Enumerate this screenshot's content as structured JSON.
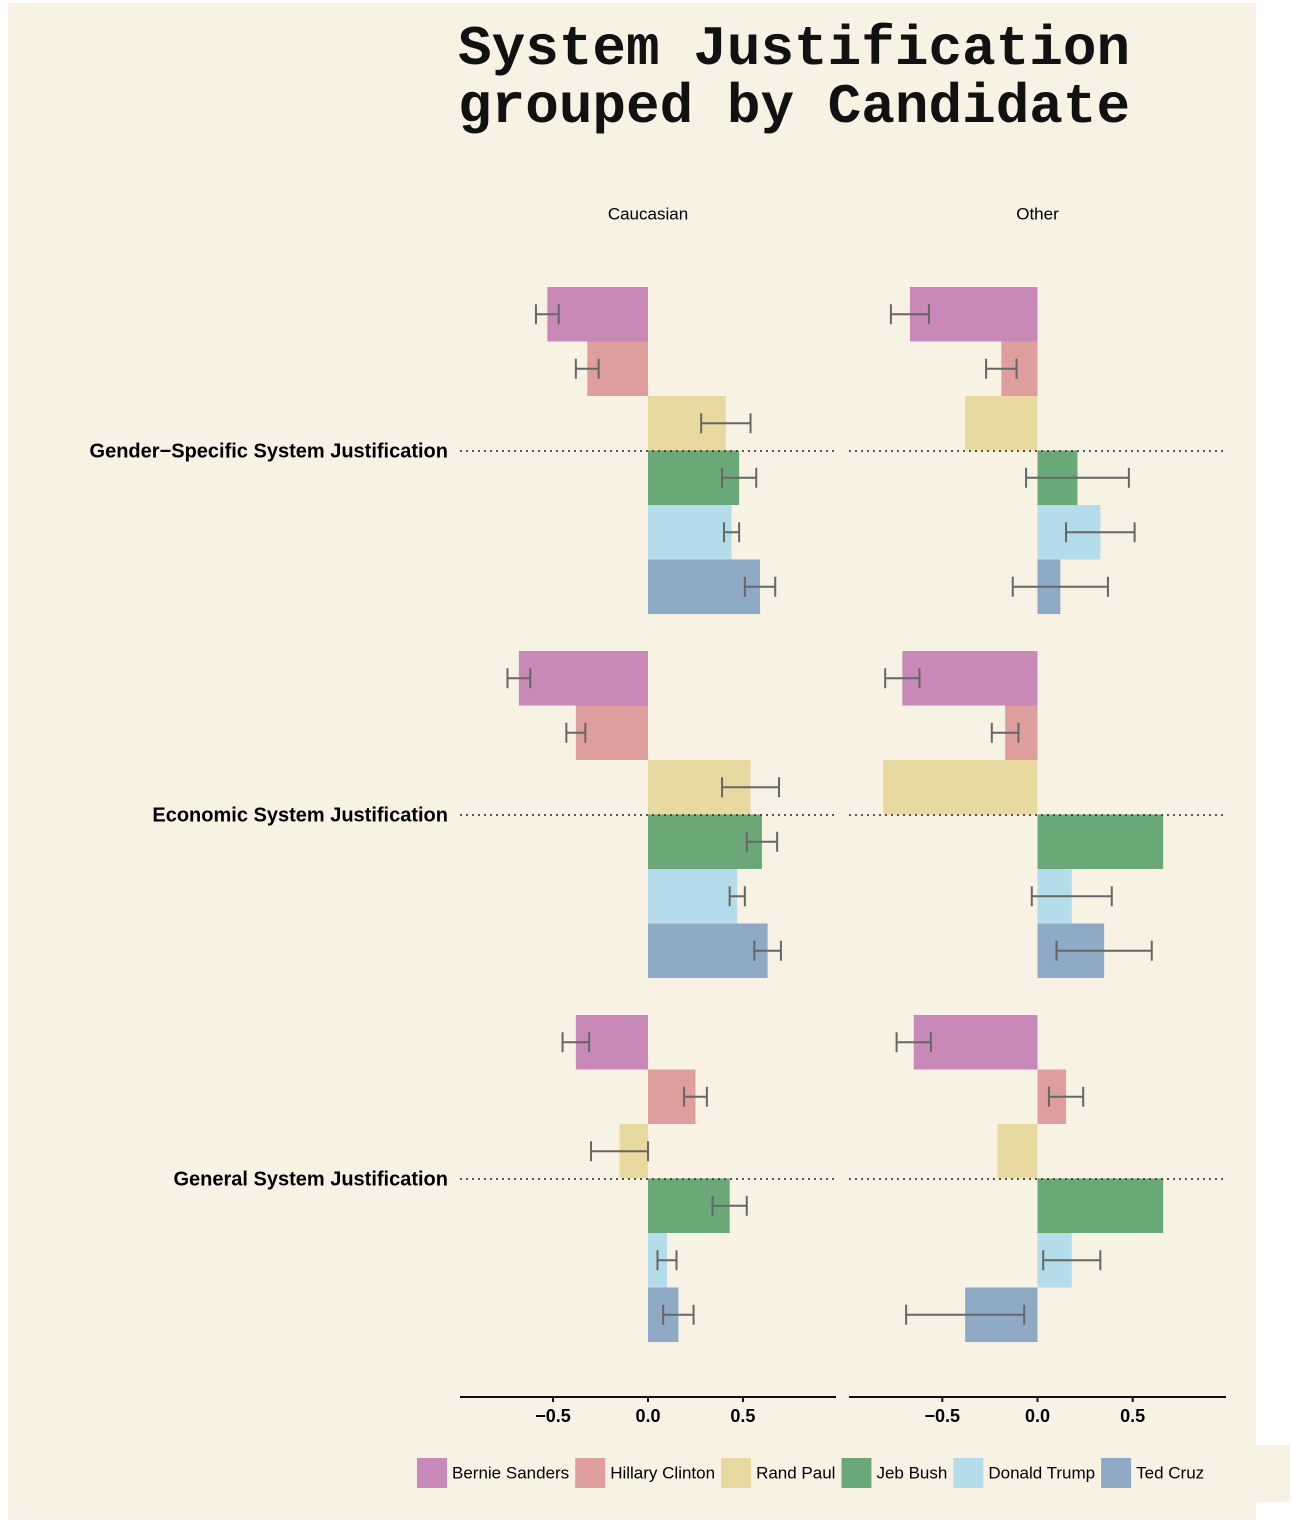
{
  "chart_data": {
    "type": "bar",
    "title": "System Justification grouped by Candidate",
    "facets": [
      "Caucasian",
      "Other"
    ],
    "categories": [
      "Gender−Specific System Justification",
      "Economic System Justification",
      "General System Justification"
    ],
    "xlim": [
      -0.99,
      0.99
    ],
    "xticks": [
      {
        "value": -0.5,
        "label": "−0.5"
      },
      {
        "value": 0,
        "label": "0.0"
      },
      0.5
    ],
    "series": [
      {
        "name": "Bernie Sanders",
        "color": "#c889b8",
        "values": [
          [
            -0.53,
            -0.68,
            -0.38
          ],
          [
            -0.67,
            -0.71,
            -0.65
          ]
        ],
        "errors": [
          [
            0.06,
            0.06,
            0.07
          ],
          [
            0.1,
            0.09,
            0.09
          ]
        ]
      },
      {
        "name": "Hillary Clinton",
        "color": "#df9e9e",
        "values": [
          [
            -0.32,
            -0.38,
            0.25
          ],
          [
            -0.19,
            -0.17,
            0.15
          ]
        ],
        "errors": [
          [
            0.06,
            0.05,
            0.06
          ],
          [
            0.08,
            0.07,
            0.09
          ]
        ]
      },
      {
        "name": "Rand Paul",
        "color": "#e8d9a0",
        "values": [
          [
            0.41,
            0.54,
            -0.15
          ],
          [
            -0.38,
            -0.81,
            -0.21
          ]
        ],
        "errors": [
          [
            0.13,
            0.15,
            0.15
          ],
          [
            null,
            null,
            null
          ]
        ]
      },
      {
        "name": "Jeb Bush",
        "color": "#6aa878",
        "values": [
          [
            0.48,
            0.6,
            0.43
          ],
          [
            0.21,
            0.66,
            0.66
          ]
        ],
        "errors": [
          [
            0.09,
            0.08,
            0.09
          ],
          [
            0.27,
            null,
            null
          ]
        ]
      },
      {
        "name": "Donald Trump",
        "color": "#b5dcea",
        "values": [
          [
            0.44,
            0.47,
            0.1
          ],
          [
            0.33,
            0.18,
            0.18
          ]
        ],
        "errors": [
          [
            0.04,
            0.04,
            0.05
          ],
          [
            0.18,
            0.21,
            0.15
          ]
        ]
      },
      {
        "name": "Ted Cruz",
        "color": "#8eaac4",
        "values": [
          [
            0.59,
            0.63,
            0.16
          ],
          [
            0.12,
            0.35,
            -0.38
          ]
        ],
        "errors": [
          [
            0.08,
            0.07,
            0.08
          ],
          [
            0.25,
            0.25,
            0.31
          ]
        ]
      }
    ]
  }
}
